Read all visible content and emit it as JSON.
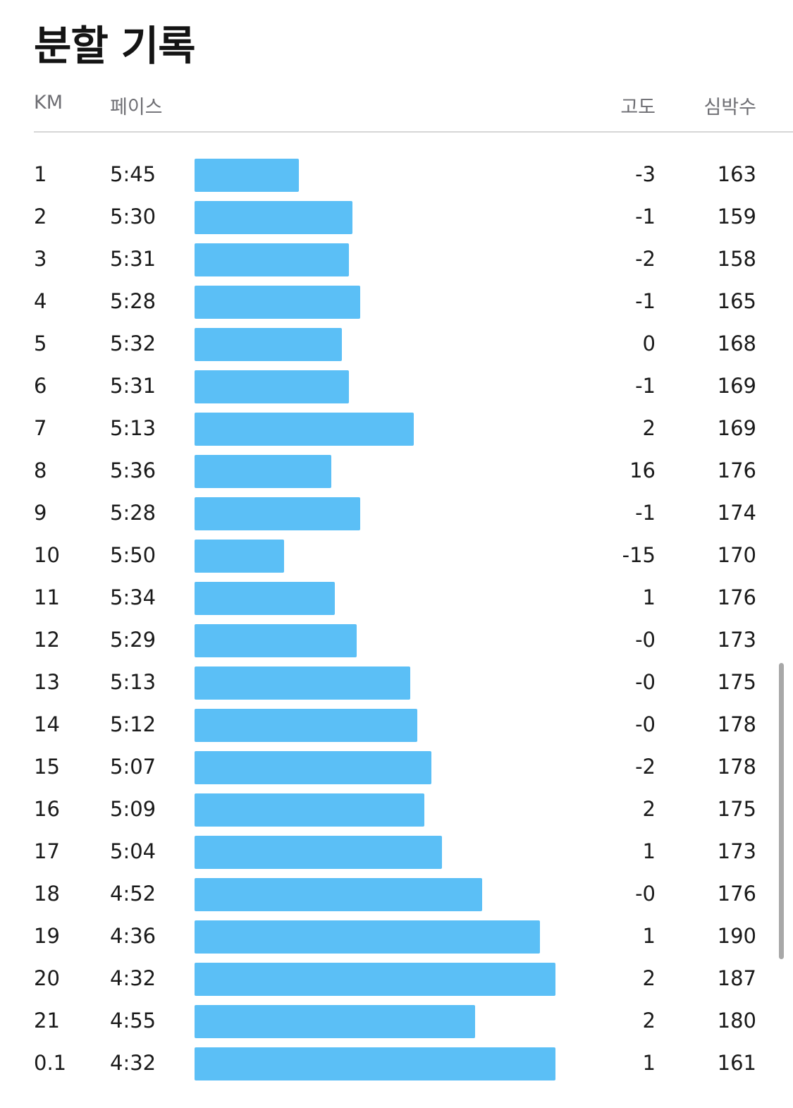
{
  "title": "분할 기록",
  "columns": {
    "km": "KM",
    "pace": "페이스",
    "elevation": "고도",
    "heart_rate": "심박수"
  },
  "colors": {
    "bar": "#5bbff6",
    "header_text": "#6e6e73",
    "divider": "#d6d6d6"
  },
  "splits": [
    {
      "km": "1",
      "pace": "5:45",
      "elevation": "-3",
      "heart_rate": "163",
      "bar_fraction": 0.289
    },
    {
      "km": "2",
      "pace": "5:30",
      "elevation": "-1",
      "heart_rate": "159",
      "bar_fraction": 0.438
    },
    {
      "km": "3",
      "pace": "5:31",
      "elevation": "-2",
      "heart_rate": "158",
      "bar_fraction": 0.428
    },
    {
      "km": "4",
      "pace": "5:28",
      "elevation": "-1",
      "heart_rate": "165",
      "bar_fraction": 0.459
    },
    {
      "km": "5",
      "pace": "5:32",
      "elevation": "0",
      "heart_rate": "168",
      "bar_fraction": 0.408
    },
    {
      "km": "6",
      "pace": "5:31",
      "elevation": "-1",
      "heart_rate": "169",
      "bar_fraction": 0.428
    },
    {
      "km": "7",
      "pace": "5:13",
      "elevation": "2",
      "heart_rate": "169",
      "bar_fraction": 0.607
    },
    {
      "km": "8",
      "pace": "5:36",
      "elevation": "16",
      "heart_rate": "176",
      "bar_fraction": 0.379
    },
    {
      "km": "9",
      "pace": "5:28",
      "elevation": "-1",
      "heart_rate": "174",
      "bar_fraction": 0.459
    },
    {
      "km": "10",
      "pace": "5:50",
      "elevation": "-15",
      "heart_rate": "170",
      "bar_fraction": 0.248
    },
    {
      "km": "11",
      "pace": "5:34",
      "elevation": "1",
      "heart_rate": "176",
      "bar_fraction": 0.389
    },
    {
      "km": "12",
      "pace": "5:29",
      "elevation": "-0",
      "heart_rate": "173",
      "bar_fraction": 0.449
    },
    {
      "km": "13",
      "pace": "5:13",
      "elevation": "-0",
      "heart_rate": "175",
      "bar_fraction": 0.598
    },
    {
      "km": "14",
      "pace": "5:12",
      "elevation": "-0",
      "heart_rate": "178",
      "bar_fraction": 0.617
    },
    {
      "km": "15",
      "pace": "5:07",
      "elevation": "-2",
      "heart_rate": "178",
      "bar_fraction": 0.656
    },
    {
      "km": "16",
      "pace": "5:09",
      "elevation": "2",
      "heart_rate": "175",
      "bar_fraction": 0.637
    },
    {
      "km": "17",
      "pace": "5:04",
      "elevation": "1",
      "heart_rate": "173",
      "bar_fraction": 0.686
    },
    {
      "km": "18",
      "pace": "4:52",
      "elevation": "-0",
      "heart_rate": "176",
      "bar_fraction": 0.797
    },
    {
      "km": "19",
      "pace": "4:36",
      "elevation": "1",
      "heart_rate": "190",
      "bar_fraction": 0.957
    },
    {
      "km": "20",
      "pace": "4:32",
      "elevation": "2",
      "heart_rate": "187",
      "bar_fraction": 1.0
    },
    {
      "km": "21",
      "pace": "4:55",
      "elevation": "2",
      "heart_rate": "180",
      "bar_fraction": 0.777
    },
    {
      "km": "0.1",
      "pace": "4:32",
      "elevation": "1",
      "heart_rate": "161",
      "bar_fraction": 1.0
    }
  ]
}
